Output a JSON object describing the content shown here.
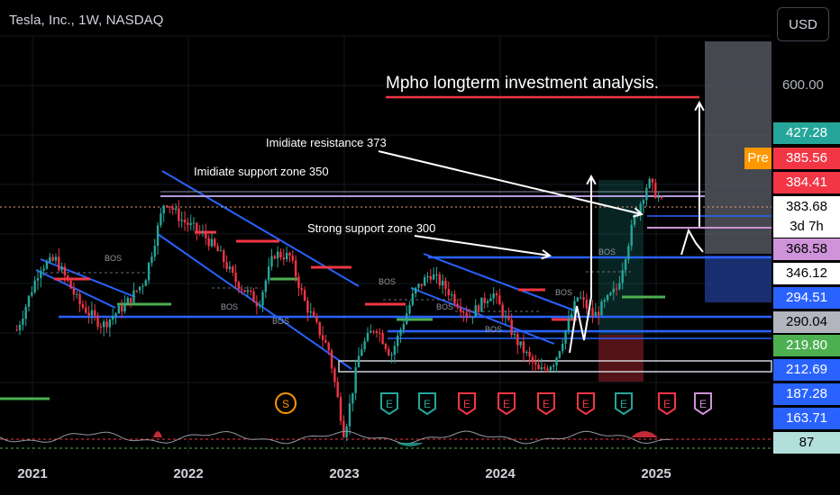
{
  "header": {
    "title": "Tesla, Inc., 1W, NASDAQ"
  },
  "currency_button": "USD",
  "pre_badge": "Pre",
  "price_labels": [
    {
      "text": "427.28",
      "bg": "#26a69a",
      "fg": "#ffffff"
    },
    {
      "text": "385.56",
      "bg": "#f23645",
      "fg": "#ffffff"
    },
    {
      "text": "384.41",
      "bg": "#f23645",
      "fg": "#ffffff"
    },
    {
      "text": "383.68",
      "bg": "#ffffff",
      "fg": "#000000"
    },
    {
      "text": "3d 7h",
      "bg": "#ffffff",
      "fg": "#000000"
    },
    {
      "text": "368.58",
      "bg": "#ce93d8",
      "fg": "#000000"
    },
    {
      "text": "346.12",
      "bg": "#ffffff",
      "fg": "#000000"
    },
    {
      "text": "294.51",
      "bg": "#2962ff",
      "fg": "#ffffff"
    },
    {
      "text": "290.04",
      "bg": "#b2b5be",
      "fg": "#000000"
    },
    {
      "text": "219.80",
      "bg": "#4caf50",
      "fg": "#ffffff"
    },
    {
      "text": "212.69",
      "bg": "#2962ff",
      "fg": "#ffffff"
    },
    {
      "text": "187.28",
      "bg": "#2962ff",
      "fg": "#ffffff"
    },
    {
      "text": "163.71",
      "bg": "#2962ff",
      "fg": "#ffffff"
    },
    {
      "text": "87",
      "bg": "#b2dfdb",
      "fg": "#000000"
    }
  ],
  "axis_label_600": "600.00",
  "annotations": {
    "title": "Mpho longterm investment analysis.",
    "resistance": "Imidiate resistance 373",
    "support350": "Imidiate support zone 350",
    "support300": "Strong support zone 300",
    "bos": "BOS"
  },
  "event_marks": [
    {
      "letter": "S",
      "color": "#ff9800"
    },
    {
      "letter": "E",
      "color": "#26a69a"
    },
    {
      "letter": "E",
      "color": "#26a69a"
    },
    {
      "letter": "E",
      "color": "#f23645"
    },
    {
      "letter": "E",
      "color": "#f23645"
    },
    {
      "letter": "E",
      "color": "#f23645"
    },
    {
      "letter": "E",
      "color": "#f23645"
    },
    {
      "letter": "E",
      "color": "#26a69a"
    },
    {
      "letter": "E",
      "color": "#f23645"
    },
    {
      "letter": "E",
      "color": "#ce93d8"
    }
  ],
  "chart_data": {
    "type": "candlestick",
    "title": "Tesla, Inc., 1W, NASDAQ",
    "x_ticks": [
      "2021",
      "2022",
      "2023",
      "2024",
      "2025"
    ],
    "y_scale": "log",
    "y_ticks": [
      "600.00"
    ],
    "last_price": 383.68,
    "close_path": [
      {
        "t": 2020.9,
        "v": 200
      },
      {
        "t": 2021.05,
        "v": 280
      },
      {
        "t": 2021.15,
        "v": 290
      },
      {
        "t": 2021.3,
        "v": 230
      },
      {
        "t": 2021.45,
        "v": 205
      },
      {
        "t": 2021.6,
        "v": 230
      },
      {
        "t": 2021.72,
        "v": 260
      },
      {
        "t": 2021.85,
        "v": 400
      },
      {
        "t": 2021.95,
        "v": 360
      },
      {
        "t": 2022.1,
        "v": 330
      },
      {
        "t": 2022.2,
        "v": 300
      },
      {
        "t": 2022.3,
        "v": 260
      },
      {
        "t": 2022.45,
        "v": 230
      },
      {
        "t": 2022.55,
        "v": 300
      },
      {
        "t": 2022.65,
        "v": 295
      },
      {
        "t": 2022.75,
        "v": 230
      },
      {
        "t": 2022.9,
        "v": 180
      },
      {
        "t": 2023.0,
        "v": 115
      },
      {
        "t": 2023.1,
        "v": 180
      },
      {
        "t": 2023.2,
        "v": 205
      },
      {
        "t": 2023.3,
        "v": 175
      },
      {
        "t": 2023.45,
        "v": 245
      },
      {
        "t": 2023.55,
        "v": 270
      },
      {
        "t": 2023.65,
        "v": 250
      },
      {
        "t": 2023.8,
        "v": 215
      },
      {
        "t": 2023.95,
        "v": 245
      },
      {
        "t": 2024.1,
        "v": 190
      },
      {
        "t": 2024.25,
        "v": 160
      },
      {
        "t": 2024.35,
        "v": 170
      },
      {
        "t": 2024.5,
        "v": 240
      },
      {
        "t": 2024.6,
        "v": 215
      },
      {
        "t": 2024.75,
        "v": 250
      },
      {
        "t": 2024.85,
        "v": 350
      },
      {
        "t": 2024.95,
        "v": 440
      },
      {
        "t": 2025.02,
        "v": 400
      },
      {
        "t": 2025.05,
        "v": 384
      }
    ],
    "levels": [
      {
        "name": "Imidiate resistance 373",
        "value": 373
      },
      {
        "name": "Imidiate support zone 350",
        "value": 350
      },
      {
        "name": "Strong support zone 300",
        "value": 300
      }
    ]
  }
}
